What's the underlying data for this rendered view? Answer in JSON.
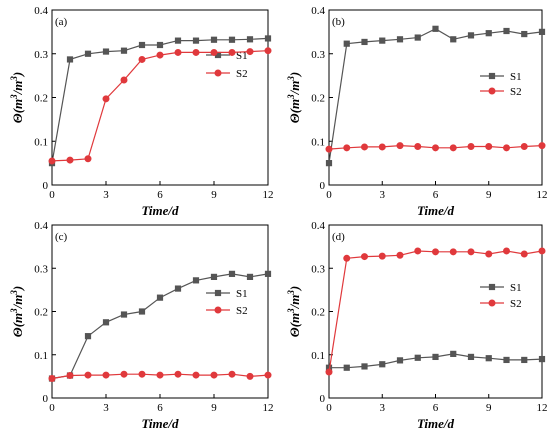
{
  "figure": {
    "ylabel_main": "Θ(m",
    "ylabel_sup1": "3",
    "ylabel_mid": "/m",
    "ylabel_sup2": "3",
    "ylabel_end": ")",
    "xlabel": "Time/d"
  },
  "chart_data": [
    {
      "type": "line",
      "panel": "(a)",
      "xlabel": "Time/d",
      "ylabel": "Θ(m³/m³)",
      "xlim": [
        0,
        12
      ],
      "ylim": [
        0,
        0.4
      ],
      "xticks": [
        0,
        3,
        6,
        9,
        12
      ],
      "yticks": [
        0,
        0.1,
        0.2,
        0.3,
        0.4
      ],
      "legend_position": "right",
      "series": [
        {
          "name": "S1",
          "color": "#555555",
          "marker": "square",
          "x": [
            0,
            1,
            2,
            3,
            4,
            5,
            6,
            7,
            8,
            9,
            10,
            11,
            12
          ],
          "y": [
            0.05,
            0.287,
            0.3,
            0.305,
            0.307,
            0.32,
            0.32,
            0.33,
            0.33,
            0.332,
            0.332,
            0.333,
            0.335
          ]
        },
        {
          "name": "S2",
          "color": "#e0393c",
          "marker": "circle",
          "x": [
            0,
            1,
            2,
            3,
            4,
            5,
            6,
            7,
            8,
            9,
            10,
            11,
            12
          ],
          "y": [
            0.055,
            0.057,
            0.06,
            0.197,
            0.24,
            0.287,
            0.297,
            0.303,
            0.303,
            0.303,
            0.303,
            0.305,
            0.307
          ]
        }
      ]
    },
    {
      "type": "line",
      "panel": "(b)",
      "xlabel": "Time/d",
      "ylabel": "Θ(m³/m³)",
      "xlim": [
        0,
        12
      ],
      "ylim": [
        0,
        0.4
      ],
      "xticks": [
        0,
        3,
        6,
        9,
        12
      ],
      "yticks": [
        0,
        0.1,
        0.2,
        0.3,
        0.4
      ],
      "legend_position": "right",
      "series": [
        {
          "name": "S1",
          "color": "#555555",
          "marker": "square",
          "x": [
            0,
            1,
            2,
            3,
            4,
            5,
            6,
            7,
            8,
            9,
            10,
            11,
            12
          ],
          "y": [
            0.05,
            0.323,
            0.327,
            0.33,
            0.333,
            0.337,
            0.357,
            0.333,
            0.342,
            0.347,
            0.352,
            0.345,
            0.35
          ]
        },
        {
          "name": "S2",
          "color": "#e0393c",
          "marker": "circle",
          "x": [
            0,
            1,
            2,
            3,
            4,
            5,
            6,
            7,
            8,
            9,
            10,
            11,
            12
          ],
          "y": [
            0.082,
            0.085,
            0.087,
            0.087,
            0.09,
            0.088,
            0.085,
            0.085,
            0.088,
            0.088,
            0.085,
            0.088,
            0.09
          ]
        }
      ]
    },
    {
      "type": "line",
      "panel": "(c)",
      "xlabel": "Time/d",
      "ylabel": "Θ(m³/m³)",
      "xlim": [
        0,
        12
      ],
      "ylim": [
        0,
        0.4
      ],
      "xticks": [
        0,
        3,
        6,
        9,
        12
      ],
      "yticks": [
        0,
        0.1,
        0.2,
        0.3,
        0.4
      ],
      "legend_position": "right",
      "series": [
        {
          "name": "S1",
          "color": "#555555",
          "marker": "square",
          "x": [
            0,
            1,
            2,
            3,
            4,
            5,
            6,
            7,
            8,
            9,
            10,
            11,
            12
          ],
          "y": [
            0.045,
            0.052,
            0.143,
            0.175,
            0.193,
            0.2,
            0.232,
            0.253,
            0.272,
            0.28,
            0.287,
            0.28,
            0.287
          ]
        },
        {
          "name": "S2",
          "color": "#e0393c",
          "marker": "circle",
          "x": [
            0,
            1,
            2,
            3,
            4,
            5,
            6,
            7,
            8,
            9,
            10,
            11,
            12
          ],
          "y": [
            0.045,
            0.052,
            0.053,
            0.053,
            0.055,
            0.055,
            0.053,
            0.055,
            0.053,
            0.053,
            0.055,
            0.05,
            0.053
          ]
        }
      ]
    },
    {
      "type": "line",
      "panel": "(d)",
      "xlabel": "Time/d",
      "ylabel": "Θ(m³/m³)",
      "xlim": [
        0,
        12
      ],
      "ylim": [
        0,
        0.4
      ],
      "xticks": [
        0,
        3,
        6,
        9,
        12
      ],
      "yticks": [
        0,
        0.1,
        0.2,
        0.3,
        0.4
      ],
      "legend_position": "right",
      "series": [
        {
          "name": "S1",
          "color": "#555555",
          "marker": "square",
          "x": [
            0,
            1,
            2,
            3,
            4,
            5,
            6,
            7,
            8,
            9,
            10,
            11,
            12
          ],
          "y": [
            0.07,
            0.07,
            0.073,
            0.078,
            0.087,
            0.093,
            0.095,
            0.102,
            0.095,
            0.092,
            0.088,
            0.088,
            0.09
          ]
        },
        {
          "name": "S2",
          "color": "#e0393c",
          "marker": "circle",
          "x": [
            0,
            1,
            2,
            3,
            4,
            5,
            6,
            7,
            8,
            9,
            10,
            11,
            12
          ],
          "y": [
            0.06,
            0.323,
            0.327,
            0.328,
            0.33,
            0.34,
            0.338,
            0.338,
            0.338,
            0.333,
            0.34,
            0.333,
            0.34
          ]
        }
      ]
    }
  ]
}
